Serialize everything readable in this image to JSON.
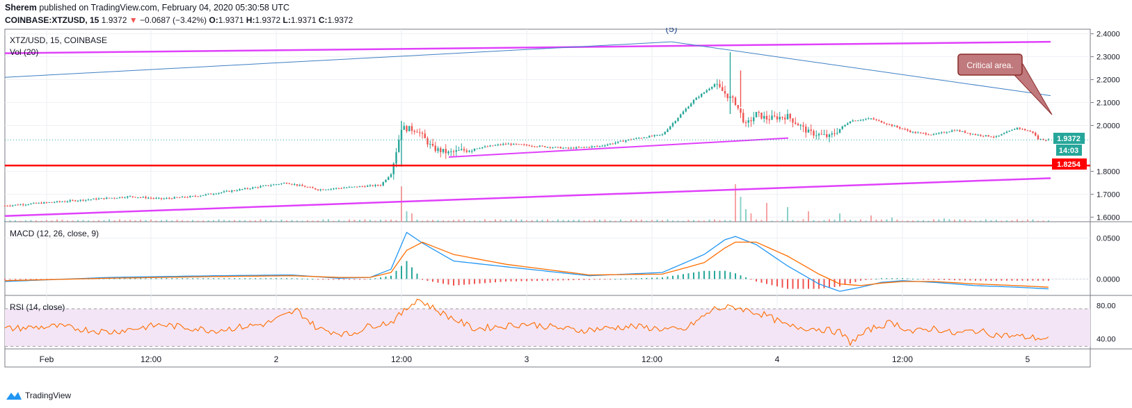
{
  "header": {
    "author": "Sherem",
    "published_text": " published on TradingView.com, February 04, 2020 05:30:58 UTC",
    "symbol": "COINBASE:XTZUSD, 15",
    "price": "1.9372",
    "change_arrow": "▼",
    "change": "−0.0687 (−3.42%)",
    "o_label": "O:",
    "o_val": "1.9371",
    "h_label": "H:",
    "h_val": "1.9372",
    "l_label": "L:",
    "l_val": "1.9371",
    "c_label": "C:",
    "c_val": "1.9372"
  },
  "price_pane": {
    "title": "XTZ/USD, 15, COINBASE",
    "volume_label": "Vol (20)",
    "wave_label": "(5)",
    "annotation": "Critical area.",
    "y_ticks": [
      "2.4000",
      "2.3000",
      "2.2000",
      "2.1000",
      "2.0000",
      "1.8000",
      "1.7000",
      "1.6000"
    ],
    "last_price_tag": "1.9372",
    "countdown_tag": "14:03",
    "level_tag": "1.8254"
  },
  "macd_pane": {
    "label": "MACD (12, 26, close, 9)",
    "y_ticks": [
      "0.0500",
      "0.0000"
    ]
  },
  "rsi_pane": {
    "label": "RSI (14, close)",
    "y_ticks": [
      "80.00",
      "40.00"
    ]
  },
  "x_axis": {
    "ticks": [
      "Feb",
      "12:00",
      "2",
      "12:00",
      "3",
      "12:00",
      "4",
      "12:00",
      "5",
      "12:00"
    ]
  },
  "footer": {
    "brand": "TradingView"
  },
  "colors": {
    "up": "#26a69a",
    "down": "#ef5350",
    "magenta": "#e040fb",
    "red_line": "#ff0000",
    "trend": "#2962ff",
    "macd": "#2196f3",
    "signal": "#ff6d00",
    "rsi": "#ff6d00",
    "rsi_band": "#f3e5f5",
    "callout": "#c0797c"
  },
  "chart_data": [
    {
      "type": "candlestick",
      "title": "XTZ/USD, 15, COINBASE",
      "ylim": [
        1.58,
        2.42
      ],
      "x_range": [
        "Jan 31 19:00",
        "Feb 5 20:00"
      ],
      "series": [
        {
          "name": "price",
          "x_hours": [
            0,
            6,
            12,
            18,
            24,
            30,
            36,
            42,
            48,
            54,
            60,
            66,
            72,
            74,
            76,
            79,
            82,
            85,
            90,
            96,
            102,
            108,
            114,
            120,
            126,
            132,
            136,
            140,
            142,
            144,
            146,
            150,
            154,
            158,
            162,
            166,
            170,
            174,
            178,
            182,
            186,
            190,
            194,
            197,
            198,
            200
          ],
          "close": [
            1.65,
            1.66,
            1.67,
            1.68,
            1.69,
            1.68,
            1.69,
            1.71,
            1.73,
            1.75,
            1.72,
            1.73,
            1.74,
            1.79,
            1.99,
            1.98,
            1.9,
            1.88,
            1.9,
            1.92,
            1.91,
            1.9,
            1.91,
            1.94,
            1.96,
            2.11,
            2.18,
            2.1,
            2.0,
            2.05,
            2.03,
            2.04,
            1.97,
            1.95,
            2.02,
            2.03,
            2.0,
            1.97,
            1.96,
            1.98,
            1.96,
            1.95,
            1.99,
            1.97,
            1.94,
            1.937
          ]
        }
      ]
    },
    {
      "type": "bar",
      "title": "Vol (20)",
      "x_hours": [
        76,
        77,
        78,
        140,
        141,
        142,
        143,
        146,
        150,
        154,
        160,
        166,
        170,
        180
      ],
      "relative_volume": [
        0.85,
        0.25,
        0.2,
        0.9,
        0.6,
        0.3,
        0.2,
        0.45,
        0.35,
        0.25,
        0.2,
        0.15,
        0.1,
        0.08
      ]
    },
    {
      "type": "line",
      "title": "MACD (12, 26, close, 9)",
      "ylim": [
        -0.02,
        0.07
      ],
      "series": [
        {
          "name": "MACD",
          "x_hours": [
            0,
            20,
            40,
            55,
            64,
            70,
            74,
            77,
            80,
            86,
            96,
            112,
            126,
            134,
            138,
            140,
            144,
            150,
            156,
            160,
            164,
            168,
            172,
            178,
            186,
            194,
            200
          ],
          "values": [
            -0.003,
            0.002,
            0.004,
            0.005,
            0.001,
            0.002,
            0.012,
            0.057,
            0.044,
            0.022,
            0.015,
            0.004,
            0.008,
            0.03,
            0.048,
            0.052,
            0.042,
            0.016,
            -0.006,
            -0.015,
            -0.01,
            -0.004,
            -0.002,
            -0.004,
            -0.008,
            -0.01,
            -0.012
          ]
        },
        {
          "name": "Signal",
          "x_hours": [
            0,
            20,
            40,
            55,
            64,
            70,
            74,
            77,
            80,
            86,
            96,
            112,
            126,
            134,
            138,
            140,
            144,
            150,
            156,
            160,
            164,
            168,
            172,
            178,
            186,
            194,
            200
          ],
          "values": [
            -0.002,
            0.001,
            0.003,
            0.004,
            0.002,
            0.002,
            0.008,
            0.035,
            0.045,
            0.03,
            0.018,
            0.005,
            0.006,
            0.02,
            0.038,
            0.045,
            0.045,
            0.028,
            0.006,
            -0.006,
            -0.008,
            -0.005,
            -0.003,
            -0.003,
            -0.006,
            -0.008,
            -0.01
          ]
        }
      ]
    },
    {
      "type": "line",
      "title": "RSI (14, close)",
      "ylim": [
        28,
        92
      ],
      "series": [
        {
          "name": "RSI",
          "x_hours": [
            0,
            10,
            20,
            30,
            40,
            50,
            56,
            60,
            66,
            70,
            74,
            76,
            79,
            84,
            90,
            100,
            110,
            120,
            130,
            136,
            140,
            146,
            150,
            156,
            160,
            162,
            166,
            170,
            174,
            178,
            182,
            186,
            190,
            196,
            200
          ],
          "values": [
            52,
            55,
            48,
            57,
            50,
            58,
            74,
            52,
            45,
            56,
            60,
            70,
            88,
            70,
            52,
            58,
            50,
            55,
            50,
            76,
            78,
            68,
            55,
            52,
            48,
            36,
            52,
            60,
            48,
            53,
            46,
            50,
            45,
            42,
            40
          ]
        }
      ]
    }
  ]
}
